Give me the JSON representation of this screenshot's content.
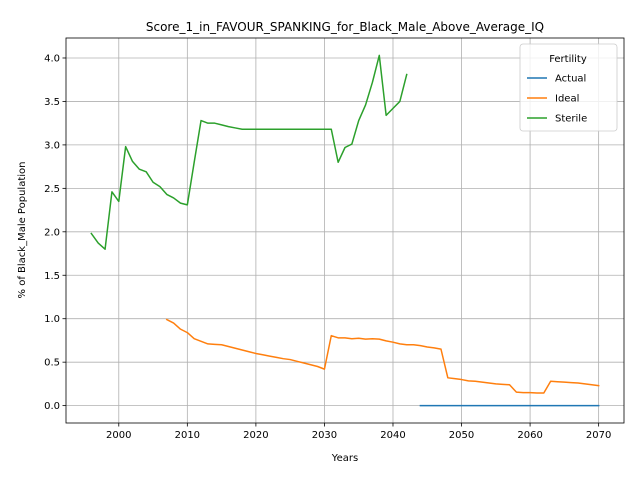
{
  "chart_data": {
    "type": "line",
    "title": "Score_1_in_FAVOUR_SPANKING_for_Black_Male_Above_Average_IQ",
    "xlabel": "Years",
    "ylabel": "% of Black_Male Population",
    "xlim": [
      1992.3,
      2073.7
    ],
    "ylim": [
      -0.2,
      4.23
    ],
    "xticks": [
      2000,
      2010,
      2020,
      2030,
      2040,
      2050,
      2060,
      2070
    ],
    "yticks": [
      0.0,
      0.5,
      1.0,
      1.5,
      2.0,
      2.5,
      3.0,
      3.5,
      4.0
    ],
    "xtick_labels": [
      "2000",
      "2010",
      "2020",
      "2030",
      "2040",
      "2050",
      "2060",
      "2070"
    ],
    "ytick_labels": [
      "0.0",
      "0.5",
      "1.0",
      "1.5",
      "2.0",
      "2.5",
      "3.0",
      "3.5",
      "4.0"
    ],
    "grid": true,
    "legend": {
      "title": "Fertility",
      "placement": "top-right"
    },
    "series": [
      {
        "name": "Actual",
        "color": "#1f77b4",
        "x": [
          2044,
          2050,
          2055,
          2060,
          2065,
          2070
        ],
        "y": [
          0.0,
          0.0,
          0.0,
          0.0,
          0.0,
          0.0
        ]
      },
      {
        "name": "Ideal",
        "color": "#ff7f0e",
        "x": [
          2007,
          2008,
          2009,
          2010,
          2011,
          2012,
          2013,
          2014,
          2015,
          2016,
          2017,
          2018,
          2019,
          2020,
          2021,
          2022,
          2023,
          2024,
          2025,
          2026,
          2027,
          2028,
          2029,
          2030,
          2031,
          2032,
          2033,
          2034,
          2035,
          2036,
          2037,
          2038,
          2039,
          2040,
          2041,
          2042,
          2043,
          2044,
          2045,
          2046,
          2047,
          2048,
          2049,
          2050,
          2051,
          2052,
          2053,
          2054,
          2055,
          2056,
          2057,
          2058,
          2059,
          2060,
          2061,
          2062,
          2063,
          2064,
          2065,
          2066,
          2067,
          2068,
          2069,
          2070
        ],
        "y": [
          0.99,
          0.95,
          0.88,
          0.84,
          0.77,
          0.74,
          0.71,
          0.705,
          0.7,
          0.68,
          0.66,
          0.64,
          0.62,
          0.6,
          0.585,
          0.57,
          0.555,
          0.54,
          0.53,
          0.51,
          0.49,
          0.47,
          0.45,
          0.42,
          0.805,
          0.78,
          0.78,
          0.77,
          0.775,
          0.765,
          0.77,
          0.765,
          0.745,
          0.73,
          0.71,
          0.7,
          0.7,
          0.69,
          0.675,
          0.665,
          0.65,
          0.32,
          0.31,
          0.3,
          0.285,
          0.28,
          0.27,
          0.26,
          0.25,
          0.245,
          0.24,
          0.155,
          0.15,
          0.15,
          0.145,
          0.145,
          0.28,
          0.275,
          0.27,
          0.265,
          0.26,
          0.25,
          0.24,
          0.23
        ]
      },
      {
        "name": "Sterile",
        "color": "#2ca02c",
        "x": [
          1996,
          1997,
          1998,
          1999,
          2000,
          2001,
          2002,
          2003,
          2004,
          2005,
          2006,
          2007,
          2008,
          2009,
          2010,
          2011,
          2012,
          2013,
          2014,
          2015,
          2016,
          2017,
          2018,
          2019,
          2020,
          2021,
          2022,
          2023,
          2024,
          2025,
          2026,
          2027,
          2028,
          2029,
          2030,
          2031,
          2032,
          2033,
          2034,
          2035,
          2036,
          2037,
          2038,
          2039,
          2040,
          2041,
          2042
        ],
        "y": [
          1.98,
          1.87,
          1.8,
          2.46,
          2.35,
          2.98,
          2.81,
          2.72,
          2.69,
          2.57,
          2.52,
          2.43,
          2.39,
          2.33,
          2.31,
          2.8,
          3.28,
          3.25,
          3.25,
          3.23,
          3.21,
          3.195,
          3.18,
          3.18,
          3.18,
          3.18,
          3.18,
          3.18,
          3.18,
          3.18,
          3.18,
          3.18,
          3.18,
          3.18,
          3.18,
          3.18,
          2.8,
          2.97,
          3.01,
          3.28,
          3.46,
          3.72,
          4.03,
          3.34,
          3.42,
          3.5,
          3.81
        ]
      }
    ]
  }
}
